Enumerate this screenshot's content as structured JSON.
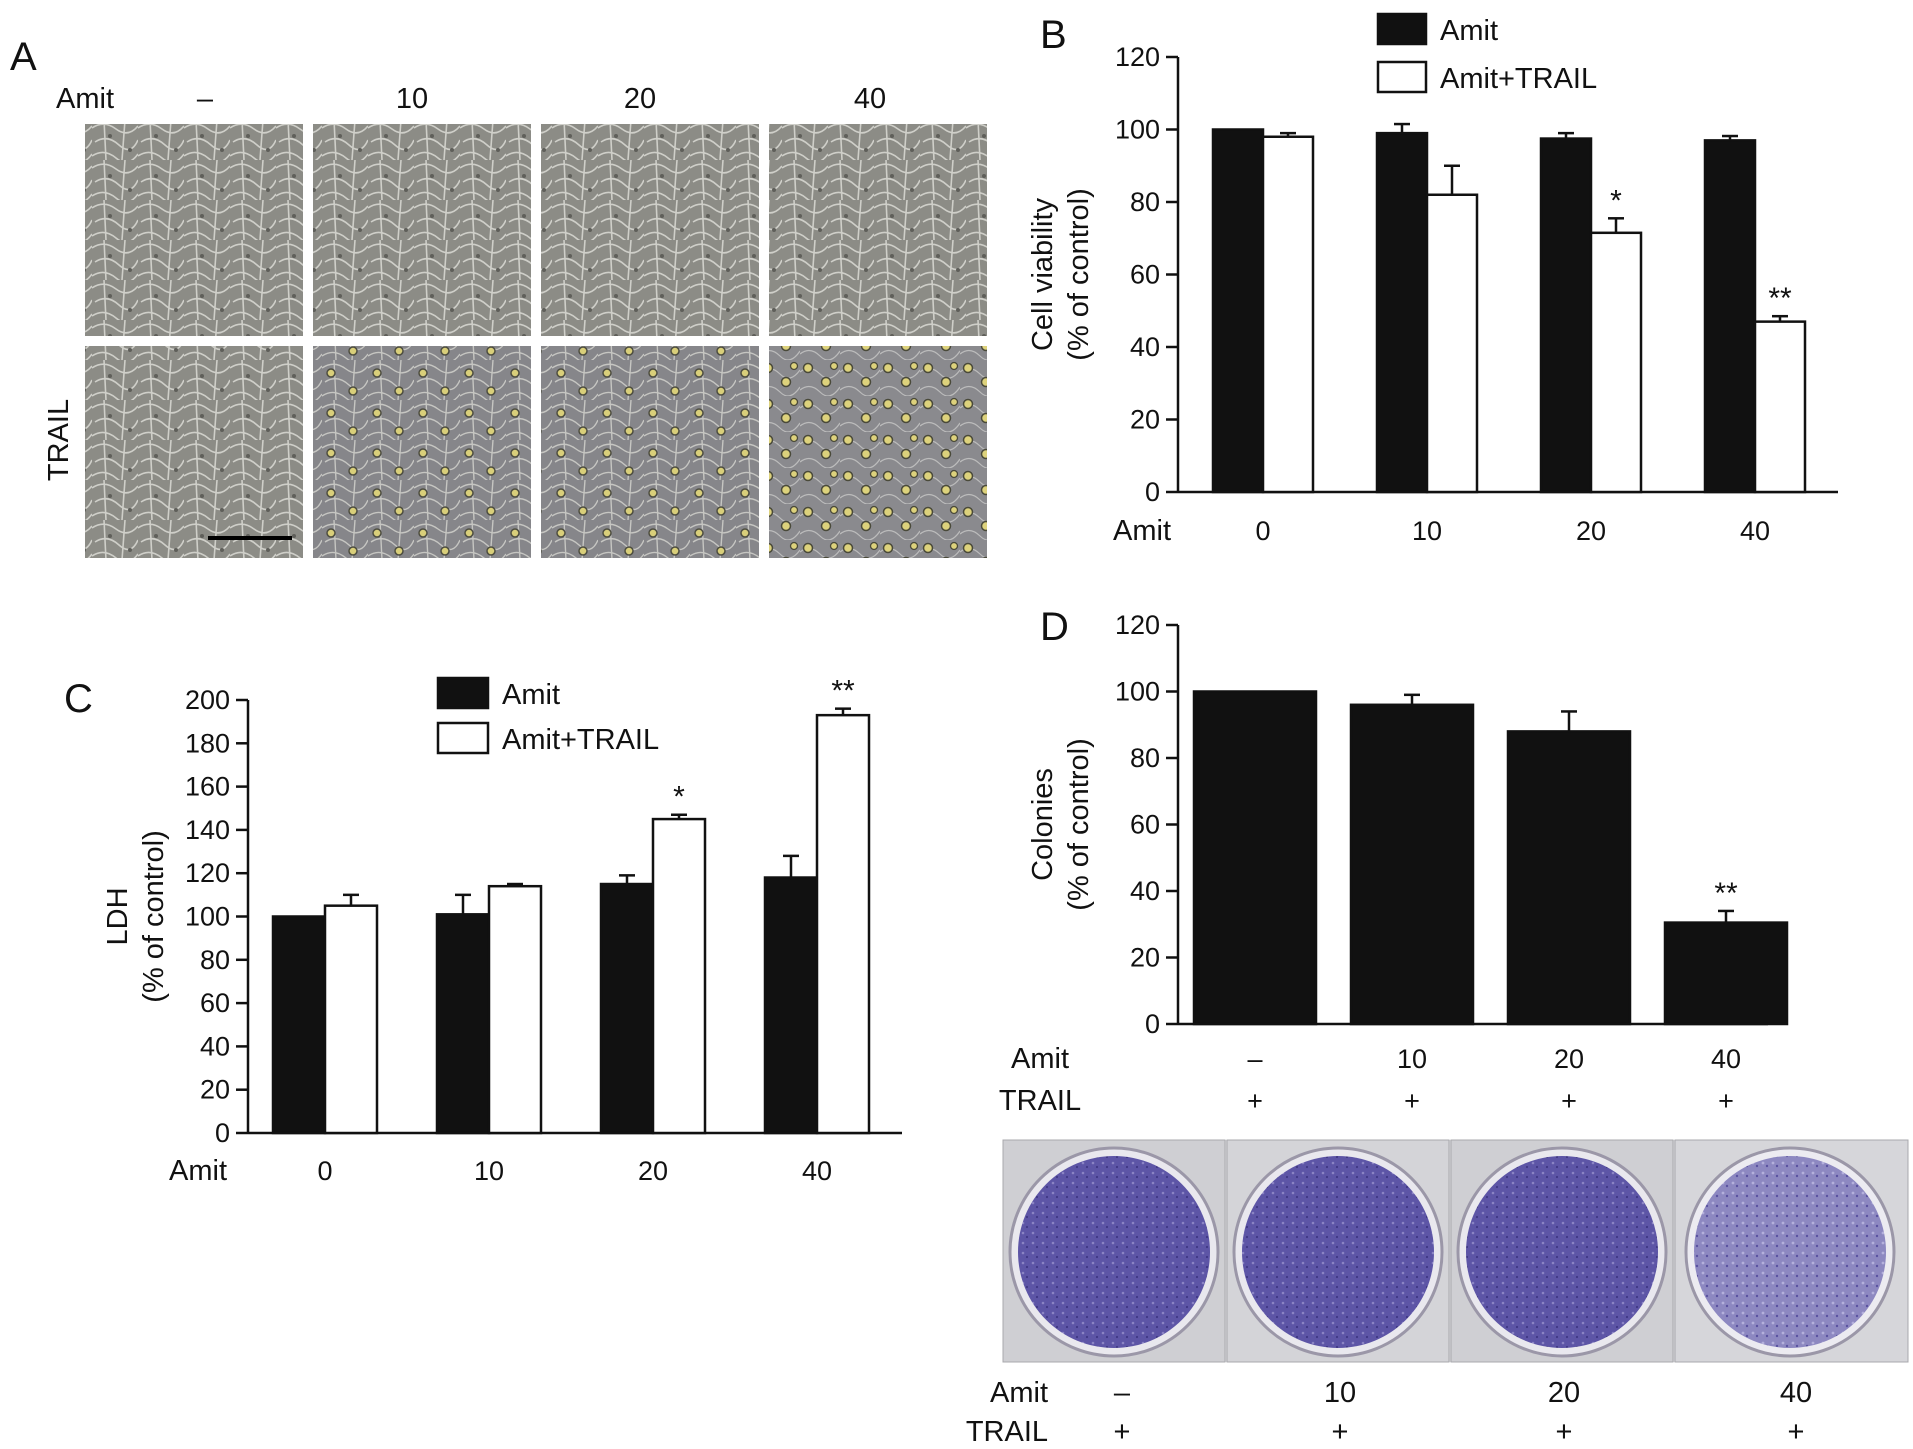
{
  "panel_a": {
    "letter": "A",
    "row_label": "Amit",
    "column_labels": [
      "–",
      "10",
      "20",
      "40"
    ],
    "second_row_label": "TRAIL"
  },
  "chart_data": [
    {
      "id": "B",
      "letter": "B",
      "type": "bar",
      "categories": [
        "0",
        "10",
        "20",
        "40"
      ],
      "category_label": "Amit",
      "ylabel": "Cell viability\n(% of control)",
      "ylim": [
        0,
        120
      ],
      "yticks": [
        0,
        20,
        40,
        60,
        80,
        100,
        120
      ],
      "legend_position": "top-center",
      "series": [
        {
          "name": "Amit",
          "color": "#111111",
          "values": [
            100,
            99,
            97.5,
            97
          ],
          "errors": [
            0,
            2.5,
            1.5,
            1.2
          ]
        },
        {
          "name": "Amit+TRAIL",
          "color": "#ffffff",
          "values": [
            98,
            82,
            71.5,
            47
          ],
          "errors": [
            1,
            8,
            4,
            1.5
          ]
        }
      ],
      "annotations": [
        {
          "series": 1,
          "category": 2,
          "text": "*"
        },
        {
          "series": 1,
          "category": 3,
          "text": "**"
        }
      ]
    },
    {
      "id": "C",
      "letter": "C",
      "type": "bar",
      "categories": [
        "0",
        "10",
        "20",
        "40"
      ],
      "category_label": "Amit",
      "ylabel": "LDH\n(% of control)",
      "ylim": [
        0,
        200
      ],
      "yticks": [
        0,
        20,
        40,
        60,
        80,
        100,
        120,
        140,
        160,
        180,
        200
      ],
      "legend_position": "top-center",
      "series": [
        {
          "name": "Amit",
          "color": "#111111",
          "values": [
            100,
            101,
            115,
            118
          ],
          "errors": [
            0,
            9,
            4,
            10
          ]
        },
        {
          "name": "Amit+TRAIL",
          "color": "#ffffff",
          "values": [
            105,
            114,
            145,
            193
          ],
          "errors": [
            5,
            1,
            2,
            3
          ]
        }
      ],
      "annotations": [
        {
          "series": 1,
          "category": 2,
          "text": "*"
        },
        {
          "series": 1,
          "category": 3,
          "text": "**"
        }
      ]
    },
    {
      "id": "D",
      "letter": "D",
      "type": "bar",
      "categories": [
        "–",
        "10",
        "20",
        "40"
      ],
      "category_label": "Amit",
      "second_row_label": "TRAIL",
      "second_row": [
        "+",
        "+",
        "+",
        "+"
      ],
      "ylabel": "Colonies\n(% of control)",
      "ylim": [
        0,
        120
      ],
      "yticks": [
        0,
        20,
        40,
        60,
        80,
        100,
        120
      ],
      "series": [
        {
          "name": "",
          "color": "#111111",
          "values": [
            100,
            96,
            88,
            30.5
          ],
          "errors": [
            0,
            3,
            6,
            3.5
          ]
        }
      ],
      "annotations": [
        {
          "series": 0,
          "category": 3,
          "text": "**"
        }
      ]
    }
  ],
  "plates": {
    "row_label": "Amit",
    "column_labels": [
      "–",
      "10",
      "20",
      "40"
    ],
    "second_row_label": "TRAIL",
    "second_row": [
      "+",
      "+",
      "+",
      "+"
    ]
  }
}
